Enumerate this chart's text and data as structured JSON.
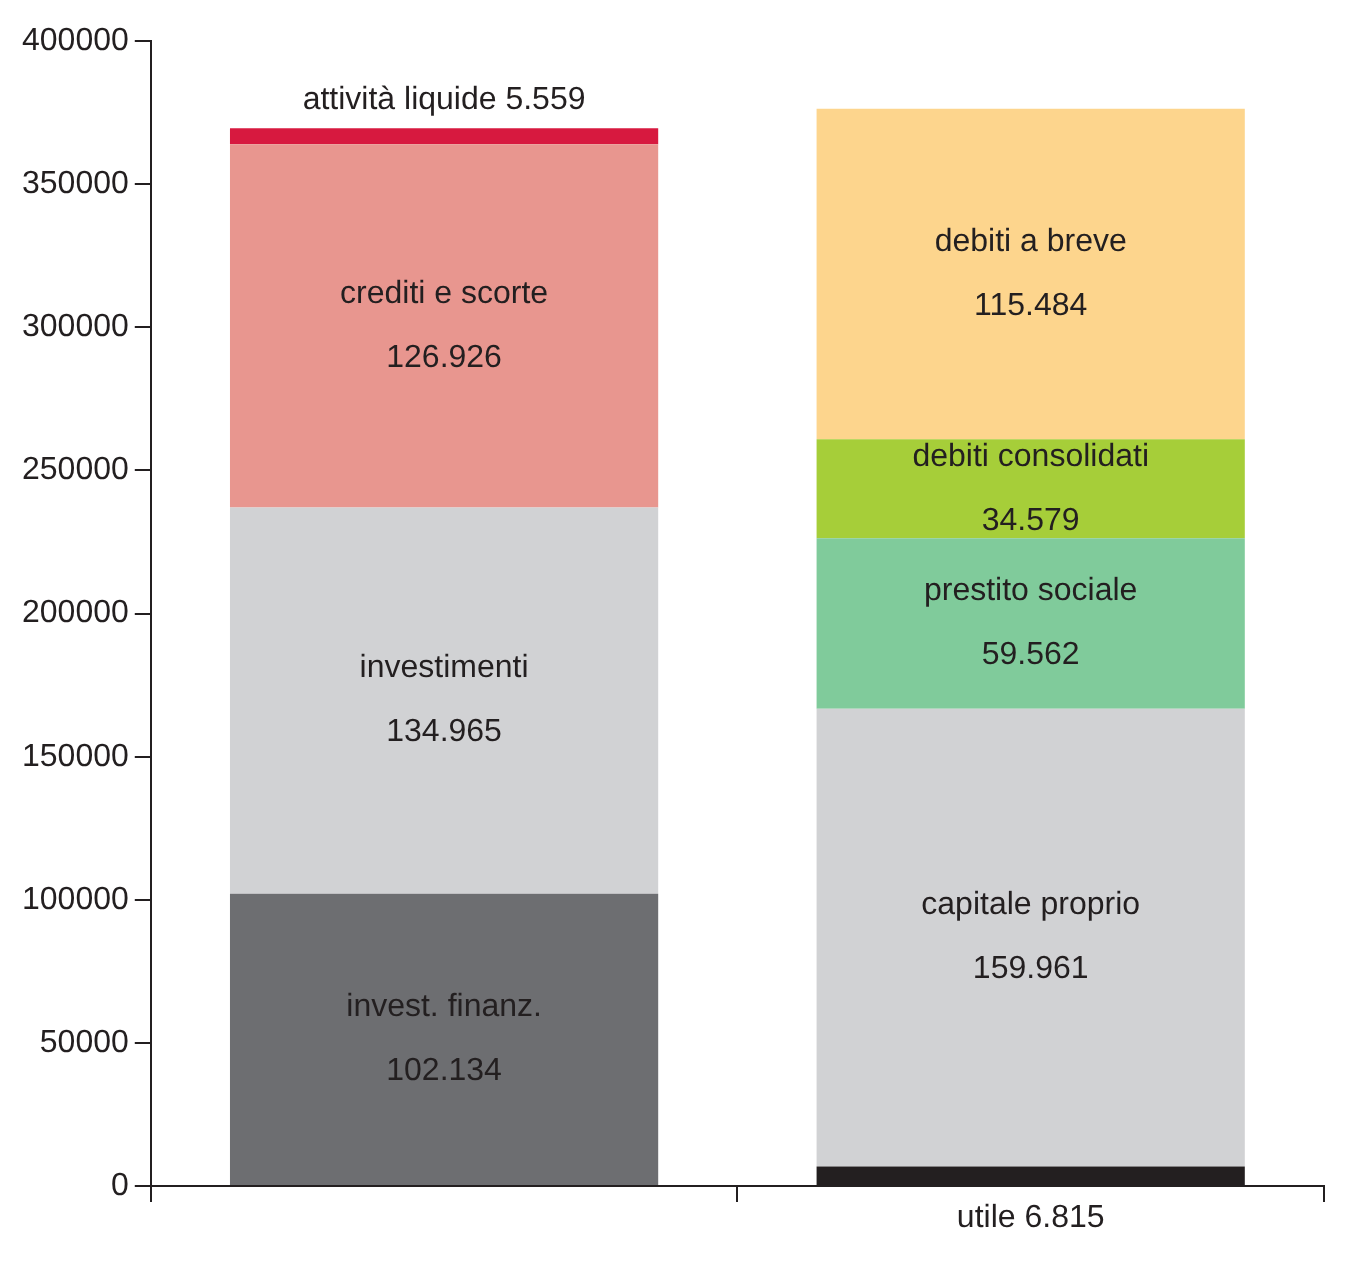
{
  "chart_data": {
    "type": "bar",
    "stacked": true,
    "categories": [
      null,
      null
    ],
    "grid": false,
    "legend": false,
    "ylim": [
      0,
      400000
    ],
    "yticks": [
      0,
      50000,
      100000,
      150000,
      200000,
      250000,
      300000,
      350000,
      400000
    ],
    "series": [
      {
        "name": "invest. finanz.",
        "color": "#6d6e71",
        "values": [
          102134,
          null
        ],
        "value_labels": [
          "102.134",
          null
        ]
      },
      {
        "name": "investimenti",
        "color": "#d1d2d4",
        "values": [
          134965,
          null
        ],
        "value_labels": [
          "134.965",
          null
        ]
      },
      {
        "name": "crediti e scorte",
        "color": "#e8968f",
        "values": [
          126926,
          null
        ],
        "value_labels": [
          "126.926",
          null
        ]
      },
      {
        "name": "attività liquide",
        "color": "#d7193f",
        "values": [
          5559,
          null
        ],
        "value_labels": [
          "5.559",
          null
        ]
      },
      {
        "name": "utile",
        "color": "#231f20",
        "values": [
          null,
          6815
        ],
        "value_labels": [
          null,
          "6.815"
        ]
      },
      {
        "name": "capitale proprio",
        "color": "#d1d2d4",
        "values": [
          null,
          159961
        ],
        "value_labels": [
          null,
          "159.961"
        ]
      },
      {
        "name": "prestito sociale",
        "color": "#80cb9b",
        "values": [
          null,
          59562
        ],
        "value_labels": [
          null,
          "59.562"
        ]
      },
      {
        "name": "debiti consolidati",
        "color": "#a6ce39",
        "values": [
          null,
          34579
        ],
        "value_labels": [
          null,
          "34.579"
        ]
      },
      {
        "name": "debiti a breve",
        "color": "#fdd58d",
        "values": [
          null,
          115484
        ],
        "value_labels": [
          null,
          "115.484"
        ]
      }
    ]
  }
}
